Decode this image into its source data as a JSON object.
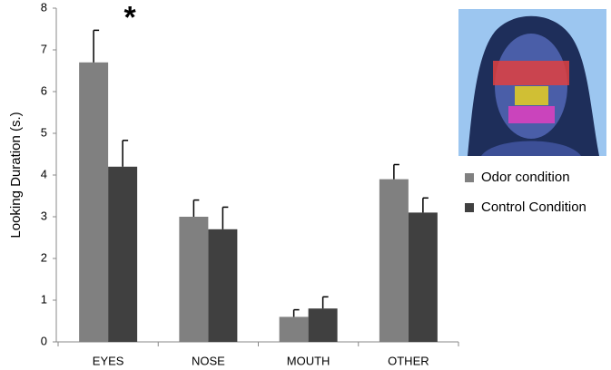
{
  "chart_data": {
    "type": "bar",
    "y_label": "Looking Duration (s.)",
    "annotation": "*",
    "categories": [
      "EYES",
      "NOSE",
      "MOUTH",
      "OTHER"
    ],
    "series": [
      {
        "name": "Odor condition",
        "color": "#808080",
        "values": [
          6.7,
          3.0,
          0.6,
          3.9
        ],
        "errors": [
          0.77,
          0.4,
          0.17,
          0.35
        ]
      },
      {
        "name": "Control Condition",
        "color": "#404040",
        "values": [
          4.2,
          2.7,
          0.8,
          3.1
        ],
        "errors": [
          0.63,
          0.53,
          0.28,
          0.35
        ]
      }
    ],
    "ylim": [
      0,
      8
    ],
    "yticks": [
      0,
      1,
      2,
      3,
      4,
      5,
      6,
      7,
      8
    ],
    "legend": "right"
  }
}
